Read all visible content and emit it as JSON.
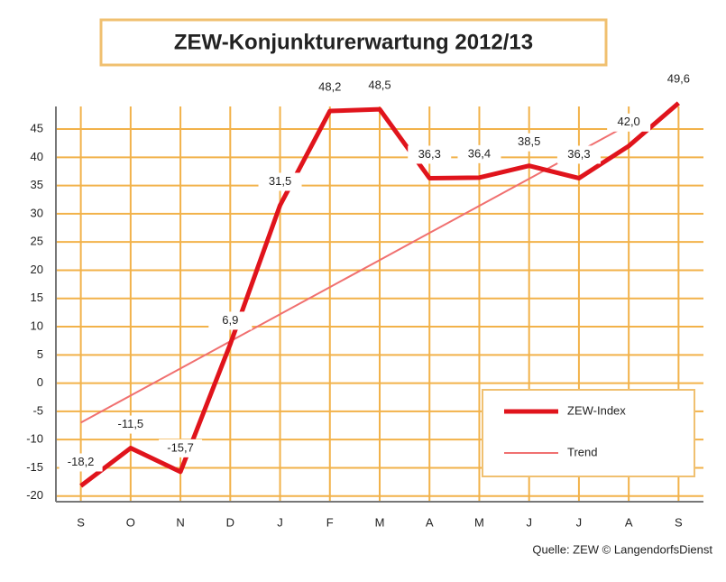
{
  "chart_data": {
    "type": "line",
    "title": "ZEW-Konjunkturerwartung 2012/13",
    "source": "Quelle: ZEW © LangendorfsDienst",
    "categories": [
      "S",
      "O",
      "N",
      "D",
      "J",
      "F",
      "M",
      "A",
      "M",
      "J",
      "J",
      "A",
      "S"
    ],
    "series": [
      {
        "name": "ZEW-Index",
        "color": "#e0141c",
        "values": [
          -18.2,
          -11.5,
          -15.7,
          6.9,
          31.5,
          48.2,
          48.5,
          36.3,
          36.4,
          38.5,
          36.3,
          42.0,
          49.6
        ],
        "value_labels": [
          "-18,2",
          "-11,5",
          "-15,7",
          "6,9",
          "31,5",
          "48,2",
          "48,5",
          "36,3",
          "36,4",
          "38,5",
          "36,3",
          "42,0",
          "49,6"
        ]
      },
      {
        "name": "Trend",
        "color": "#f07070",
        "values": [
          -7,
          -2.2,
          2.6,
          7.4,
          12.2,
          17,
          21.8,
          26.6,
          31.4,
          36.2,
          41,
          45.8,
          null
        ]
      }
    ],
    "ylim": [
      -21,
      49
    ],
    "yticks": [
      -20,
      -15,
      -10,
      -5,
      0,
      5,
      10,
      15,
      20,
      25,
      30,
      35,
      40,
      45
    ],
    "grid": true,
    "legend": "lower right"
  }
}
